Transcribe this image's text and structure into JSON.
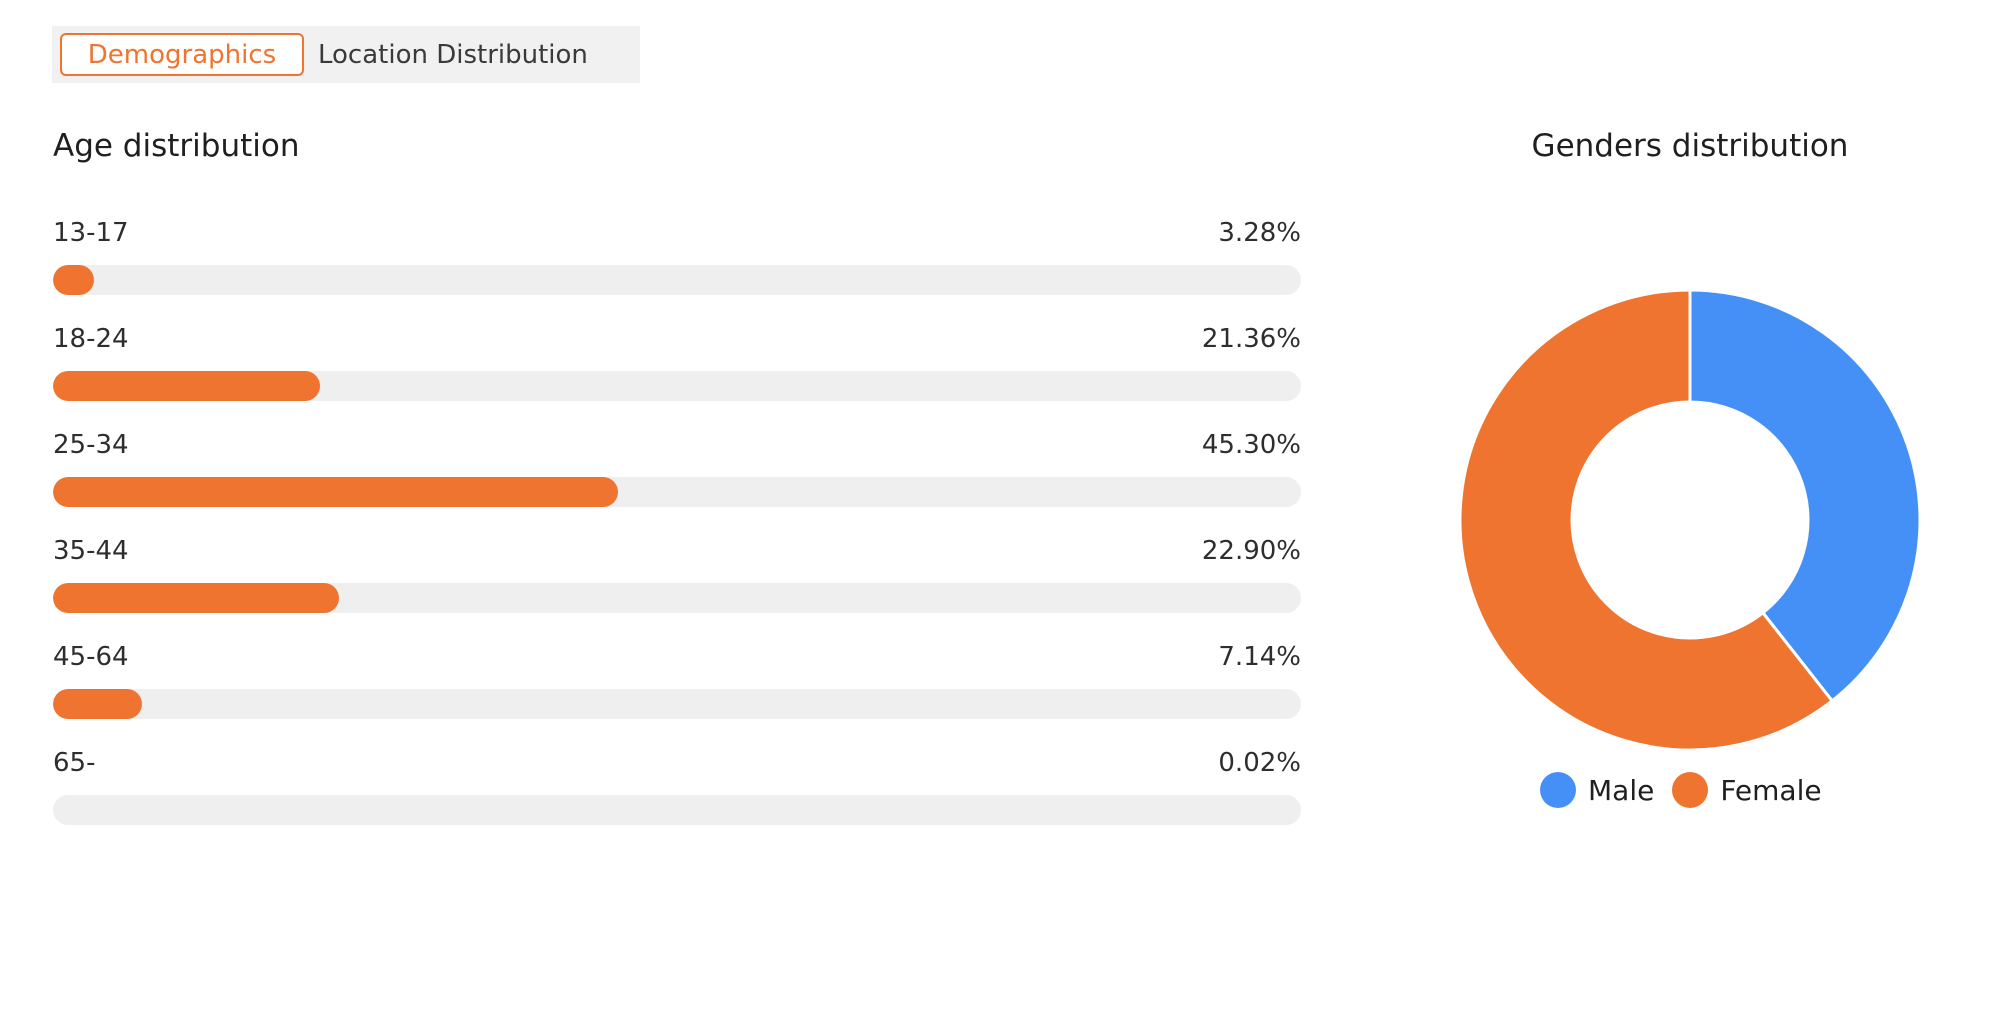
{
  "tabs": [
    {
      "label": "Demographics",
      "active": true
    },
    {
      "label": "Location Distribution",
      "active": false
    }
  ],
  "age": {
    "title": "Age distribution",
    "rows": [
      {
        "label": "13-17",
        "percent_text": "3.28%",
        "value": 3.28
      },
      {
        "label": "18-24",
        "percent_text": "21.36%",
        "value": 21.36
      },
      {
        "label": "25-34",
        "percent_text": "45.30%",
        "value": 45.3
      },
      {
        "label": "35-44",
        "percent_text": "22.90%",
        "value": 22.9
      },
      {
        "label": "45-64",
        "percent_text": "7.14%",
        "value": 7.14
      },
      {
        "label": "65-",
        "percent_text": "0.02%",
        "value": 0.02
      }
    ]
  },
  "gender": {
    "title": "Genders distribution",
    "legend": [
      {
        "label": "Male",
        "color": "#4590f6"
      },
      {
        "label": "Female",
        "color": "#ef7430"
      }
    ]
  },
  "colors": {
    "accent": "#ef7430",
    "male": "#4590f6",
    "female": "#ef7430",
    "track": "#efefef"
  },
  "chart_data": {
    "type": "pie",
    "categories": [
      "Male",
      "Female"
    ],
    "values": [
      39.4,
      60.6
    ],
    "title": "Genders distribution",
    "legend": "bottom"
  }
}
